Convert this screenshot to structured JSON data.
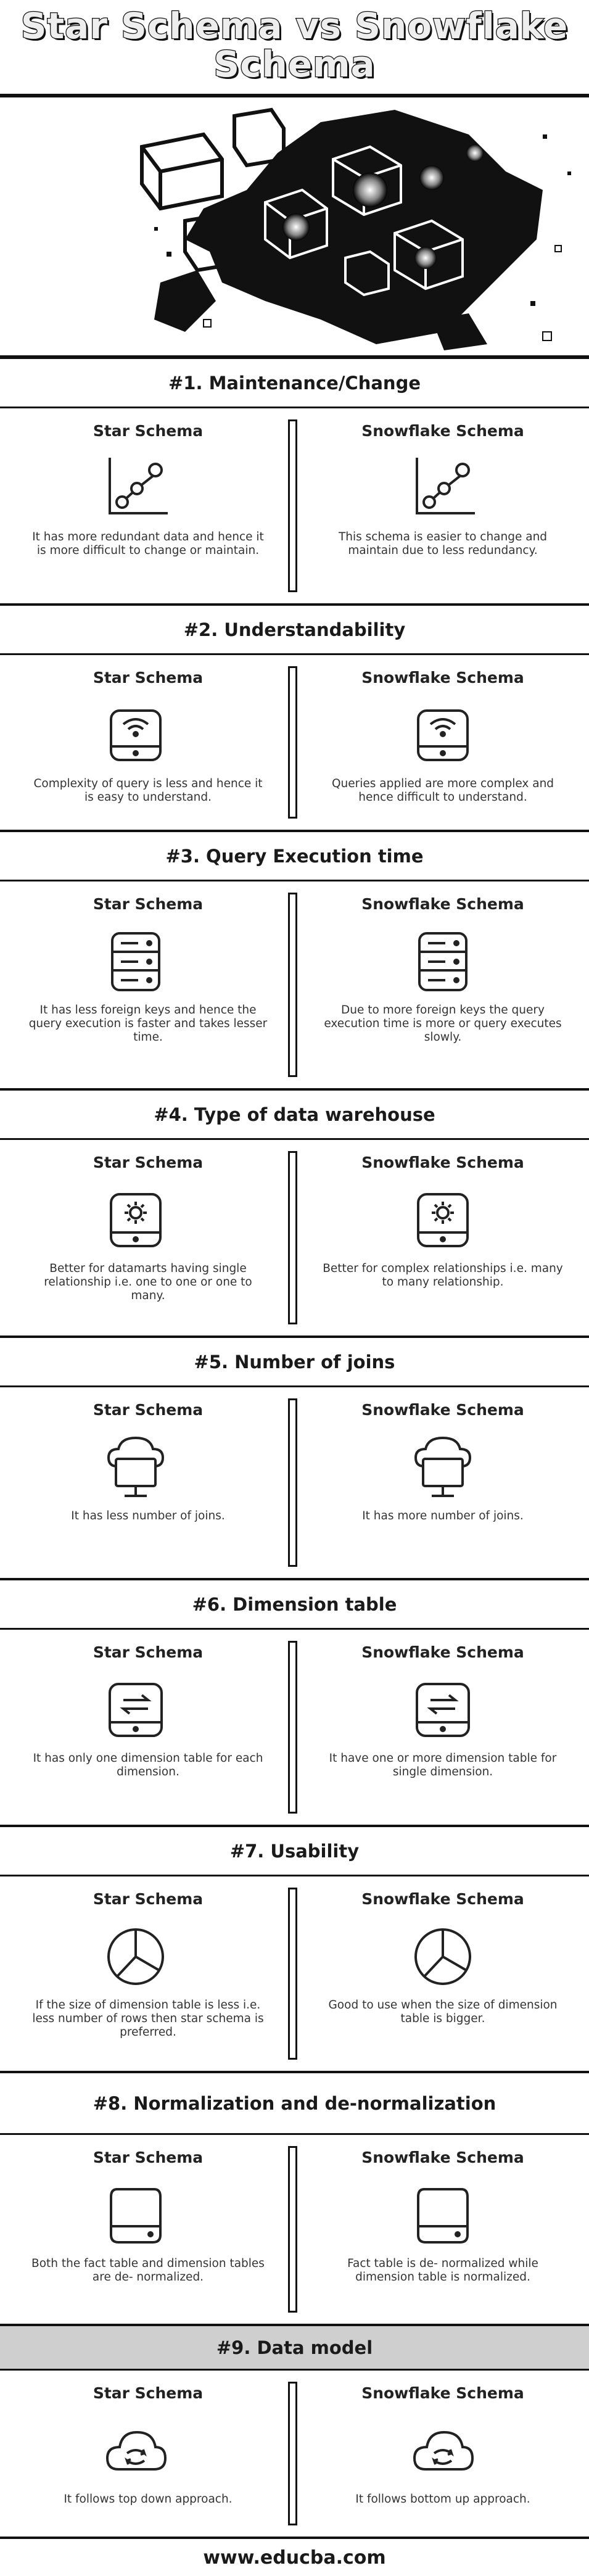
{
  "title": "Star Schema vs Snowflake Schema",
  "footer": "www.educba.com",
  "sections": [
    {
      "heading": "#1. Maintenance/Change",
      "left": {
        "title": "Star Schema",
        "icon": "chart-line-icon",
        "text": "It has more redundant data and hence it is more difficult to change or maintain."
      },
      "right": {
        "title": "Snowflake Schema",
        "icon": "chart-line-icon",
        "text": "This schema is easier to change and maintain due to less redundancy."
      }
    },
    {
      "heading": "#2. Understandability",
      "left": {
        "title": "Star Schema",
        "icon": "router-icon",
        "text": "Complexity of query is less and hence it is easy to understand."
      },
      "right": {
        "title": "Snowflake Schema",
        "icon": "router-icon",
        "text": "Queries applied are more complex and hence difficult to understand."
      }
    },
    {
      "heading": "#3. Query Execution time",
      "left": {
        "title": "Star Schema",
        "icon": "server-icon",
        "text": "It has less foreign keys and hence the query execution is faster and takes lesser time."
      },
      "right": {
        "title": "Snowflake Schema",
        "icon": "server-icon",
        "text": "Due to more foreign keys the query execution time is more or query executes slowly."
      }
    },
    {
      "heading": "#4. Type of data warehouse",
      "left": {
        "title": "Star Schema",
        "icon": "settings-drive-icon",
        "text": "Better for datamarts having single relationship i.e. one to one or one to many."
      },
      "right": {
        "title": "Snowflake Schema",
        "icon": "settings-drive-icon",
        "text": "Better for complex relationships i.e. many to many relationship."
      }
    },
    {
      "heading": "#5. Number of joins",
      "left": {
        "title": "Star Schema",
        "icon": "cloud-monitor-icon",
        "text": "It has less number of joins."
      },
      "right": {
        "title": "Snowflake Schema",
        "icon": "cloud-monitor-icon",
        "text": "It has more number of joins."
      }
    },
    {
      "heading": "#6. Dimension table",
      "left": {
        "title": "Star Schema",
        "icon": "transfer-drive-icon",
        "text": "It has only one dimension table for each dimension."
      },
      "right": {
        "title": "Snowflake Schema",
        "icon": "transfer-drive-icon",
        "text": "It have one or more dimension table for single dimension."
      }
    },
    {
      "heading": "#7. Usability",
      "left": {
        "title": "Star Schema",
        "icon": "pie-chart-icon",
        "text": "If the size of dimension table is less i.e. less number of rows then star schema is preferred."
      },
      "right": {
        "title": "Snowflake Schema",
        "icon": "pie-chart-icon",
        "text": "Good to use when the size of dimension table is bigger."
      }
    },
    {
      "heading": "#8. Normalization and de-normalization",
      "left": {
        "title": "Star Schema",
        "icon": "hard-drive-icon",
        "text": "Both the fact table and dimension tables are de- normalized."
      },
      "right": {
        "title": "Snowflake Schema",
        "icon": "hard-drive-icon",
        "text": "Fact table is de- normalized while dimension table is normalized."
      }
    },
    {
      "heading": "#9. Data model",
      "left": {
        "title": "Star Schema",
        "icon": "cloud-sync-icon",
        "text": "It follows top down approach."
      },
      "right": {
        "title": "Snowflake Schema",
        "icon": "cloud-sync-icon",
        "text": "It follows bottom up approach."
      }
    }
  ]
}
